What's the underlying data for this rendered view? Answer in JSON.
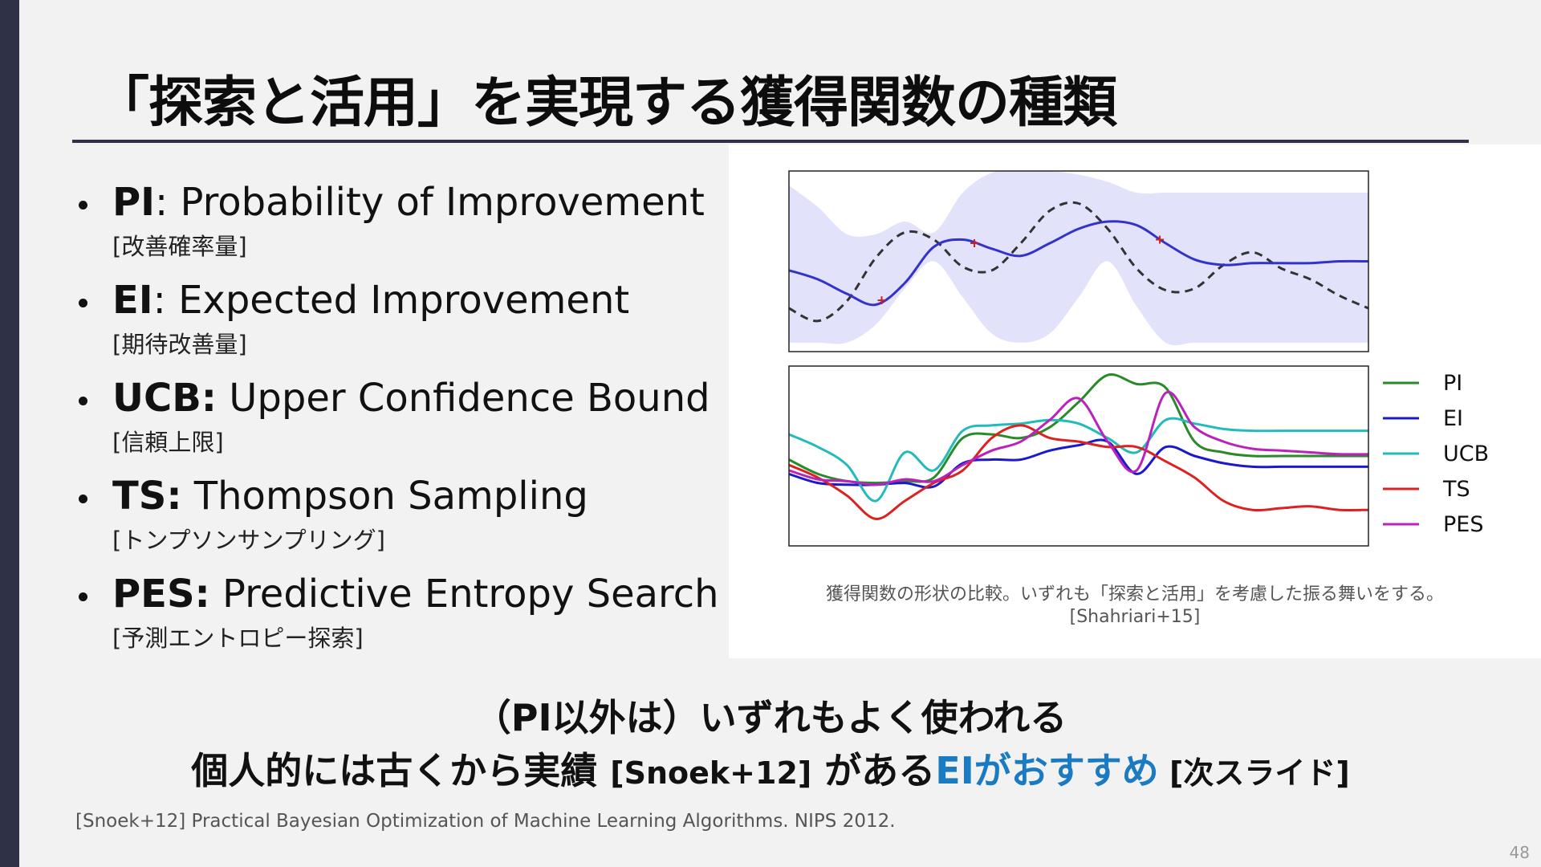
{
  "slide": {
    "title": "「探索と活用」を実現する獲得関数の種類",
    "page_number": "48"
  },
  "bullets": [
    {
      "abbr": "PI",
      "sep": ": ",
      "text": "Probability of Improvement",
      "sub": "[改善確率量]"
    },
    {
      "abbr": "EI",
      "sep": ": ",
      "text": "Expected Improvement",
      "sub": "[期待改善量]"
    },
    {
      "abbr": "UCB:",
      "sep": " ",
      "text": "Upper Confidence Bound",
      "sub": "[信頼上限]"
    },
    {
      "abbr": "TS:",
      "sep": " ",
      "text": "Thompson Sampling",
      "sub": "[トンプソンサンプリング]"
    },
    {
      "abbr": "PES:",
      "sep": " ",
      "text": "Predictive Entropy Search",
      "sub": "[予測エントロピー探索]"
    }
  ],
  "figure": {
    "caption_line1": "獲得関数の形状の比較。いずれも「探索と活用」を考慮した振る舞いをする。",
    "caption_line2": "[Shahriari+15]"
  },
  "chart_data": [
    {
      "type": "line",
      "title": "",
      "xlabel": "",
      "ylabel": "",
      "grid": false,
      "x": [
        0.0,
        0.05,
        0.1,
        0.15,
        0.2,
        0.25,
        0.3,
        0.35,
        0.4,
        0.45,
        0.5,
        0.55,
        0.6,
        0.65,
        0.7,
        0.75,
        0.8,
        0.85,
        0.9,
        0.95,
        1.0
      ],
      "observations_x": [
        0.16,
        0.32,
        0.64
      ],
      "series": [
        {
          "kind": "posterior_mean",
          "color": "#3333cc",
          "values": [
            0.45,
            0.4,
            0.32,
            0.26,
            0.38,
            0.58,
            0.62,
            0.57,
            0.53,
            0.6,
            0.68,
            0.72,
            0.7,
            0.6,
            0.51,
            0.48,
            0.49,
            0.49,
            0.49,
            0.5,
            0.5
          ]
        },
        {
          "kind": "objective",
          "color": "#333333",
          "dashed": true,
          "values": [
            0.24,
            0.17,
            0.28,
            0.52,
            0.66,
            0.62,
            0.47,
            0.45,
            0.6,
            0.78,
            0.82,
            0.68,
            0.46,
            0.34,
            0.35,
            0.48,
            0.55,
            0.46,
            0.4,
            0.31,
            0.24
          ]
        },
        {
          "kind": "upper_band",
          "color": "#e2e2fa",
          "values": [
            0.92,
            0.8,
            0.65,
            0.65,
            0.72,
            0.66,
            0.88,
            0.99,
            1.0,
            1.0,
            0.98,
            0.94,
            0.88,
            0.88,
            0.88,
            0.88,
            0.88,
            0.88,
            0.88,
            0.88,
            0.88
          ]
        },
        {
          "kind": "lower_band",
          "color": "#e2e2fa",
          "values": [
            0.05,
            0.05,
            0.05,
            0.15,
            0.35,
            0.5,
            0.3,
            0.1,
            0.05,
            0.1,
            0.3,
            0.5,
            0.25,
            0.05,
            0.05,
            0.05,
            0.05,
            0.05,
            0.05,
            0.05,
            0.05
          ]
        }
      ]
    },
    {
      "type": "line",
      "title": "",
      "xlabel": "",
      "ylabel": "",
      "grid": false,
      "legend_position": "right",
      "x": [
        0.0,
        0.05,
        0.1,
        0.15,
        0.2,
        0.25,
        0.3,
        0.35,
        0.4,
        0.45,
        0.5,
        0.55,
        0.6,
        0.65,
        0.7,
        0.75,
        0.8,
        0.85,
        0.9,
        0.95,
        1.0
      ],
      "series": [
        {
          "name": "PI",
          "color": "#2a8a2a",
          "values": [
            0.48,
            0.4,
            0.36,
            0.35,
            0.36,
            0.38,
            0.6,
            0.62,
            0.6,
            0.66,
            0.8,
            0.95,
            0.9,
            0.88,
            0.58,
            0.52,
            0.5,
            0.5,
            0.5,
            0.5,
            0.5
          ]
        },
        {
          "name": "EI",
          "color": "#1a1acc",
          "values": [
            0.4,
            0.35,
            0.34,
            0.34,
            0.35,
            0.33,
            0.46,
            0.48,
            0.48,
            0.53,
            0.56,
            0.58,
            0.4,
            0.55,
            0.5,
            0.46,
            0.44,
            0.44,
            0.44,
            0.44,
            0.44
          ]
        },
        {
          "name": "UCB",
          "color": "#22bbbb",
          "values": [
            0.62,
            0.55,
            0.45,
            0.25,
            0.52,
            0.42,
            0.64,
            0.67,
            0.68,
            0.7,
            0.68,
            0.6,
            0.52,
            0.7,
            0.68,
            0.65,
            0.64,
            0.64,
            0.64,
            0.64,
            0.64
          ]
        },
        {
          "name": "TS",
          "color": "#dd2020",
          "values": [
            0.45,
            0.38,
            0.28,
            0.15,
            0.25,
            0.35,
            0.42,
            0.6,
            0.67,
            0.6,
            0.58,
            0.55,
            0.55,
            0.47,
            0.38,
            0.25,
            0.2,
            0.21,
            0.22,
            0.2,
            0.2
          ]
        },
        {
          "name": "PES",
          "color": "#bb22bb",
          "values": [
            0.42,
            0.37,
            0.36,
            0.34,
            0.37,
            0.36,
            0.45,
            0.53,
            0.58,
            0.7,
            0.82,
            0.58,
            0.42,
            0.85,
            0.66,
            0.58,
            0.54,
            0.53,
            0.52,
            0.51,
            0.51
          ]
        }
      ]
    }
  ],
  "bottom": {
    "line1": "（PI以外は）いずれもよく使われる",
    "line2_a": "個人的には古くから実績 ",
    "line2_ref": "[Snoek+12]",
    "line2_b": " がある",
    "line2_accent": "EIがおすすめ",
    "line2_note": " [次スライド]",
    "accent_color": "#1a7bc2"
  },
  "reference": "[Snoek+12] Practical Bayesian Optimization of Machine Learning Algorithms. NIPS 2012."
}
